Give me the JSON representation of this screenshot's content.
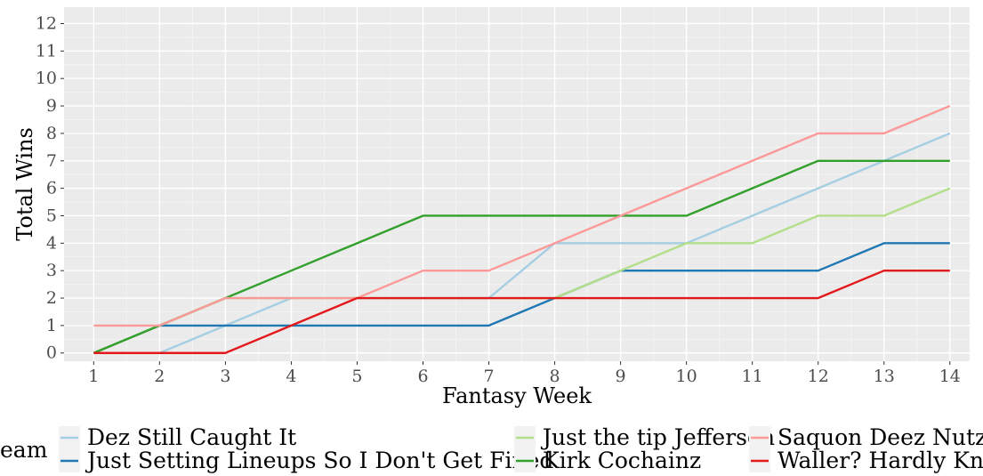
{
  "chart_data": {
    "type": "line",
    "title": "",
    "xlabel": "Fantasy Week",
    "ylabel": "Total Wins",
    "x": [
      1,
      2,
      3,
      4,
      5,
      6,
      7,
      8,
      9,
      10,
      11,
      12,
      13,
      14
    ],
    "xlim": [
      0.55,
      14.3
    ],
    "ylim": [
      -0.3,
      12.6
    ],
    "x_ticks": [
      "1",
      "2",
      "3",
      "4",
      "5",
      "6",
      "7",
      "8",
      "9",
      "10",
      "11",
      "12",
      "13",
      "14"
    ],
    "y_ticks": [
      "0",
      "1",
      "2",
      "3",
      "4",
      "5",
      "6",
      "7",
      "8",
      "9",
      "10",
      "11",
      "12"
    ],
    "grid": true,
    "legend_position": "bottom",
    "legend_title": "eam",
    "series": [
      {
        "name": "Dez Still Caught It",
        "color": "#a6cee3",
        "values": [
          0,
          0,
          1,
          2,
          2,
          2,
          2,
          4,
          4,
          4,
          5,
          6,
          7,
          8
        ]
      },
      {
        "name": "Just Setting Lineups So I Don't Get Fined",
        "color": "#1f78b4",
        "values": [
          0,
          1,
          1,
          1,
          1,
          1,
          1,
          2,
          3,
          3,
          3,
          3,
          4,
          4
        ]
      },
      {
        "name": "Just the tip Jefferson",
        "color": "#b2df8a",
        "values": [
          0,
          1,
          2,
          2,
          2,
          2,
          2,
          2,
          3,
          4,
          4,
          5,
          5,
          6
        ]
      },
      {
        "name": "Kirk Cochainz",
        "color": "#33a02c",
        "values": [
          0,
          1,
          2,
          3,
          4,
          5,
          5,
          5,
          5,
          5,
          6,
          7,
          7,
          7
        ]
      },
      {
        "name": "Saquon Deez Nutz",
        "color": "#fb9a99",
        "values": [
          1,
          1,
          2,
          2,
          2,
          3,
          3,
          4,
          5,
          6,
          7,
          8,
          8,
          9
        ]
      },
      {
        "name": "Waller? Hardly Kno",
        "color": "#e31a1c",
        "values": [
          0,
          0,
          0,
          1,
          2,
          2,
          2,
          2,
          2,
          2,
          2,
          2,
          3,
          3
        ]
      }
    ]
  }
}
